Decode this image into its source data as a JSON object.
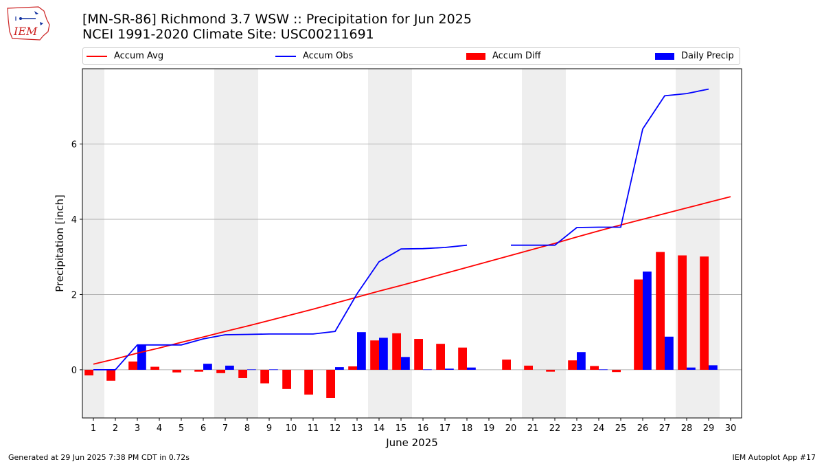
{
  "title_line1": "[MN-SR-86] Richmond 3.7 WSW :: Precipitation for Jun 2025",
  "title_line2": "NCEI 1991-2020 Climate Site: USC00211691",
  "logo_text": "IEM",
  "footer_left": "Generated at 29 Jun 2025 7:38 PM CDT in 0.72s",
  "footer_right": "IEM Autoplot App #17",
  "colors": {
    "avg": "#ff0000",
    "obs": "#0000ff",
    "diff": "#ff0000",
    "daily": "#0000ff",
    "weekend": "#eeeeee",
    "grid": "#b0b0b0"
  },
  "chart_data": {
    "type": "bar",
    "xlabel": "June 2025",
    "ylabel": "Precipitation [inch]",
    "xlim": [
      0.5,
      30.5
    ],
    "ylim": [
      -1.28,
      8.0
    ],
    "yticks": [
      0,
      2,
      4,
      6
    ],
    "grid": "y",
    "legend_position": "top",
    "legend": [
      "Accum Avg",
      "Accum Obs",
      "Accum Diff",
      "Daily Precip"
    ],
    "x": [
      1,
      2,
      3,
      4,
      5,
      6,
      7,
      8,
      9,
      10,
      11,
      12,
      13,
      14,
      15,
      16,
      17,
      18,
      19,
      20,
      21,
      22,
      23,
      24,
      25,
      26,
      27,
      28,
      29,
      30
    ],
    "weekend_days": [
      1,
      7,
      8,
      14,
      15,
      21,
      22,
      28,
      29
    ],
    "series": [
      {
        "name": "Accum Avg",
        "kind": "line",
        "values": [
          0.15,
          0.29,
          0.44,
          0.58,
          0.73,
          0.87,
          1.02,
          1.16,
          1.31,
          1.46,
          1.61,
          1.77,
          1.93,
          2.09,
          2.24,
          2.4,
          2.56,
          2.72,
          2.88,
          3.04,
          3.2,
          3.36,
          3.53,
          3.69,
          3.85,
          4.0,
          4.15,
          4.3,
          4.45,
          4.6
        ]
      },
      {
        "name": "Accum Obs",
        "kind": "line",
        "values": [
          0.0,
          0.0,
          0.66,
          0.66,
          0.66,
          0.82,
          0.93,
          0.94,
          0.95,
          0.95,
          0.95,
          1.02,
          2.02,
          2.87,
          3.21,
          3.22,
          3.25,
          3.31,
          null,
          3.31,
          3.31,
          3.31,
          3.78,
          3.79,
          3.79,
          6.4,
          7.28,
          7.34,
          7.46,
          null
        ]
      },
      {
        "name": "Accum Diff",
        "kind": "bar",
        "values": [
          -0.15,
          -0.29,
          0.22,
          0.08,
          -0.07,
          -0.05,
          -0.09,
          -0.22,
          -0.36,
          -0.51,
          -0.66,
          -0.75,
          0.09,
          0.78,
          0.97,
          0.82,
          0.69,
          0.59,
          null,
          0.27,
          0.11,
          -0.05,
          0.25,
          0.1,
          -0.06,
          2.4,
          3.13,
          3.04,
          3.01,
          null
        ]
      },
      {
        "name": "Daily Precip",
        "kind": "bar",
        "values": [
          0.0,
          0.0,
          0.66,
          0.0,
          0.0,
          0.16,
          0.11,
          0.01,
          0.01,
          0.0,
          0.0,
          0.07,
          1.0,
          0.85,
          0.34,
          0.01,
          0.03,
          0.06,
          null,
          0.0,
          0.0,
          0.0,
          0.47,
          0.01,
          0.0,
          2.61,
          0.88,
          0.06,
          0.12,
          null
        ]
      }
    ]
  }
}
